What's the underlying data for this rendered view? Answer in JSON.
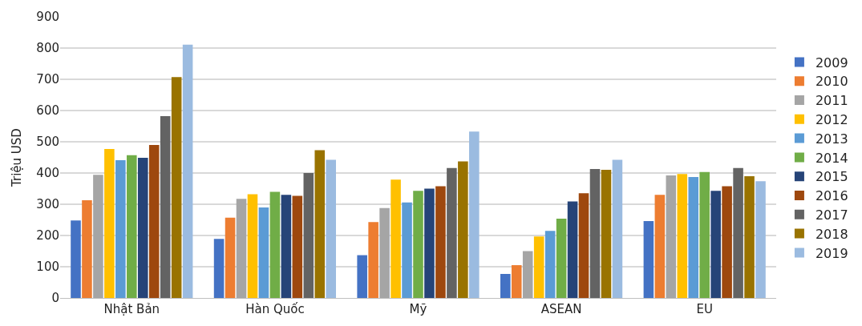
{
  "chart_data": {
    "type": "bar",
    "ylabel": "Triệu USD",
    "categories": [
      "Nhật Bản",
      "Hàn Quốc",
      "Mỹ",
      "ASEAN",
      "EU"
    ],
    "series": [
      {
        "name": "2009",
        "color": "#4472c4",
        "values": [
          248,
          189,
          137,
          77,
          246
        ]
      },
      {
        "name": "2010",
        "color": "#ed7d31",
        "values": [
          313,
          257,
          243,
          105,
          330
        ]
      },
      {
        "name": "2011",
        "color": "#a5a5a5",
        "values": [
          394,
          317,
          288,
          150,
          392
        ]
      },
      {
        "name": "2012",
        "color": "#ffc000",
        "values": [
          477,
          332,
          379,
          197,
          397
        ]
      },
      {
        "name": "2013",
        "color": "#5b9bd5",
        "values": [
          441,
          290,
          306,
          215,
          387
        ]
      },
      {
        "name": "2014",
        "color": "#70ad47",
        "values": [
          457,
          340,
          343,
          254,
          403
        ]
      },
      {
        "name": "2015",
        "color": "#264478",
        "values": [
          449,
          330,
          350,
          309,
          343
        ]
      },
      {
        "name": "2016",
        "color": "#9e480e",
        "values": [
          490,
          327,
          358,
          335,
          358
        ]
      },
      {
        "name": "2017",
        "color": "#636363",
        "values": [
          582,
          400,
          416,
          413,
          416
        ]
      },
      {
        "name": "2018",
        "color": "#997300",
        "values": [
          707,
          473,
          437,
          410,
          390
        ]
      },
      {
        "name": "2019",
        "color": "#9bbbe0",
        "values": [
          811,
          442,
          533,
          442,
          374
        ]
      }
    ],
    "ylim": [
      0,
      900
    ],
    "yticks": [
      0,
      100,
      200,
      300,
      400,
      500,
      600,
      700,
      800,
      900
    ],
    "grid": "y",
    "legend": "right"
  }
}
